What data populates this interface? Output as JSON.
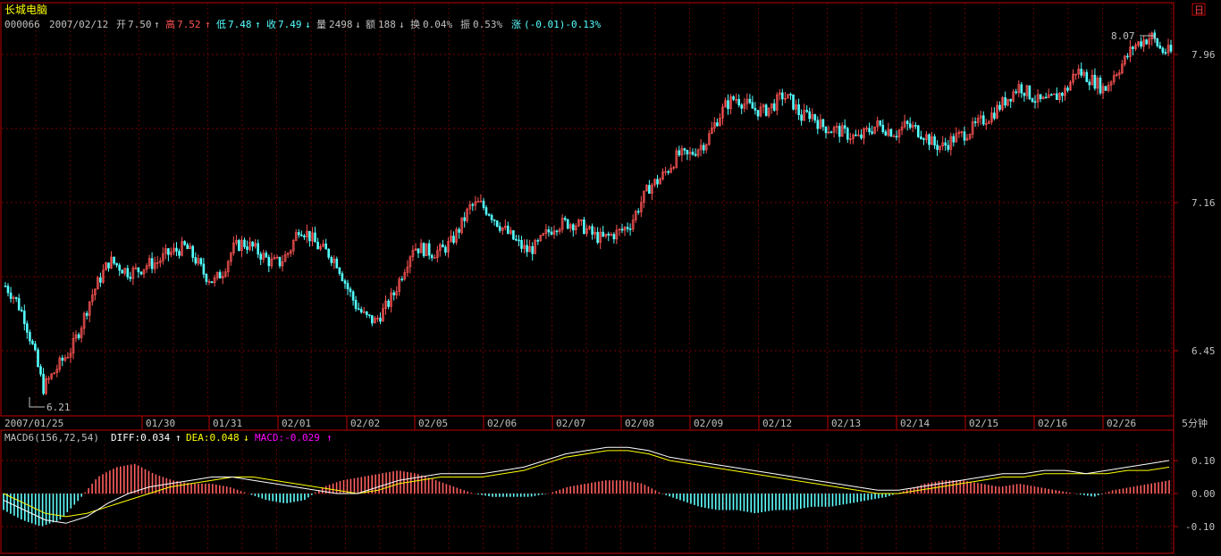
{
  "header": {
    "title": "长城电脑",
    "code": "000066",
    "date": "2007/02/12",
    "open_label": "开",
    "open": "7.50",
    "high_label": "高",
    "high": "7.52",
    "low_label": "低",
    "low": "7.48",
    "close_label": "收",
    "close": "7.49",
    "volume_label": "量",
    "volume": "2498",
    "amount_label": "额",
    "amount": "188",
    "turnover_label": "换",
    "turnover": "0.04%",
    "amplitude_label": "振",
    "amplitude": "0.53%",
    "change_label": "涨",
    "change": "(-0.01)-0.13%",
    "period_badge": "日",
    "period": "5分钟"
  },
  "colors": {
    "background": "#000000",
    "up": "#ff5454",
    "down": "#54ffff",
    "grid": "#a00000",
    "frame": "#c00000",
    "axis_text": "#c0c0c0",
    "title": "#ffff00",
    "diff": "#ffffff",
    "dea": "#ffff00",
    "macd": "#ff00ff",
    "macd_up": "#ff5f5f",
    "macd_down": "#5fffff"
  },
  "chart_data": [
    {
      "type": "candlestick",
      "title": "长城电脑",
      "y_ticks": [
        "7.96",
        "7.16",
        "6.45"
      ],
      "ylim": [
        6.18,
        8.12
      ],
      "x_tick_labels": [
        "2007/01/25",
        "01/30",
        "01/31",
        "02/01",
        "02/02",
        "02/05",
        "02/06",
        "02/07",
        "02/08",
        "02/09",
        "02/12",
        "02/13",
        "02/14",
        "02/15",
        "02/16",
        "02/26"
      ],
      "annotations": [
        {
          "text": "6.21",
          "type": "min"
        },
        {
          "text": "8.07",
          "type": "max"
        }
      ],
      "close_series": [
        6.78,
        6.72,
        6.62,
        6.45,
        6.26,
        6.33,
        6.4,
        6.46,
        6.58,
        6.72,
        6.82,
        6.91,
        6.88,
        6.85,
        6.86,
        6.89,
        6.9,
        6.94,
        6.96,
        6.98,
        6.92,
        6.84,
        6.8,
        6.86,
        6.97,
        7.0,
        6.98,
        6.94,
        6.9,
        6.9,
        6.96,
        7.08,
        7.04,
        6.98,
        6.95,
        6.9,
        6.78,
        6.68,
        6.62,
        6.6,
        6.66,
        6.74,
        6.86,
        6.98,
        6.97,
        6.95,
        6.96,
        7.0,
        7.08,
        7.18,
        7.2,
        7.16,
        7.1,
        7.05,
        7.0,
        6.96,
        6.98,
        7.04,
        7.09,
        7.1,
        7.1,
        7.08,
        7.04,
        7.02,
        7.04,
        7.06,
        7.1,
        7.2,
        7.29,
        7.32,
        7.38,
        7.45,
        7.44,
        7.48,
        7.52,
        7.62,
        7.7,
        7.74,
        7.71,
        7.68,
        7.67,
        7.7,
        7.75,
        7.72,
        7.64,
        7.66,
        7.6,
        7.58,
        7.57,
        7.55,
        7.53,
        7.57,
        7.6,
        7.58,
        7.56,
        7.6,
        7.58,
        7.55,
        7.5,
        7.49,
        7.53,
        7.55,
        7.58,
        7.62,
        7.65,
        7.7,
        7.75,
        7.8,
        7.76,
        7.72,
        7.72,
        7.75,
        7.78,
        7.88,
        7.85,
        7.82,
        7.78,
        7.86,
        7.92,
        8.0,
        8.03,
        8.05,
        7.98,
        7.97
      ]
    },
    {
      "type": "line",
      "title": "MACD6(156,72,54)",
      "series": [
        {
          "name": "DIFF",
          "label": "DIFF:0.034",
          "values": [
            -0.02,
            -0.05,
            -0.08,
            -0.09,
            -0.07,
            -0.03,
            0.0,
            0.02,
            0.03,
            0.04,
            0.05,
            0.05,
            0.04,
            0.03,
            0.02,
            0.01,
            0.0,
            0.0,
            0.02,
            0.04,
            0.05,
            0.06,
            0.06,
            0.06,
            0.07,
            0.08,
            0.1,
            0.12,
            0.13,
            0.14,
            0.14,
            0.13,
            0.11,
            0.1,
            0.09,
            0.08,
            0.07,
            0.06,
            0.05,
            0.04,
            0.03,
            0.02,
            0.01,
            0.01,
            0.02,
            0.03,
            0.04,
            0.05,
            0.06,
            0.06,
            0.07,
            0.07,
            0.06,
            0.07,
            0.08,
            0.09,
            0.1
          ]
        },
        {
          "name": "DEA",
          "label": "DEA:0.048",
          "values": [
            0.0,
            -0.03,
            -0.06,
            -0.07,
            -0.06,
            -0.04,
            -0.02,
            0.0,
            0.02,
            0.03,
            0.04,
            0.05,
            0.05,
            0.04,
            0.03,
            0.02,
            0.01,
            0.0,
            0.01,
            0.03,
            0.04,
            0.05,
            0.05,
            0.05,
            0.06,
            0.07,
            0.09,
            0.11,
            0.12,
            0.13,
            0.13,
            0.12,
            0.1,
            0.09,
            0.08,
            0.07,
            0.06,
            0.05,
            0.04,
            0.03,
            0.02,
            0.01,
            0.0,
            0.0,
            0.01,
            0.02,
            0.03,
            0.04,
            0.05,
            0.05,
            0.06,
            0.06,
            0.06,
            0.06,
            0.07,
            0.07,
            0.08
          ]
        },
        {
          "name": "MACD",
          "label": "MACD:-0.029",
          "values": [
            -0.05,
            -0.08,
            -0.1,
            -0.08,
            -0.02,
            0.05,
            0.08,
            0.09,
            0.06,
            0.04,
            0.03,
            0.03,
            0.02,
            0.0,
            -0.02,
            -0.03,
            -0.02,
            0.02,
            0.04,
            0.05,
            0.06,
            0.07,
            0.06,
            0.04,
            0.02,
            0.0,
            -0.01,
            -0.01,
            -0.01,
            0.0,
            0.02,
            0.03,
            0.04,
            0.04,
            0.03,
            0.0,
            -0.02,
            -0.04,
            -0.05,
            -0.05,
            -0.06,
            -0.05,
            -0.05,
            -0.04,
            -0.04,
            -0.03,
            -0.02,
            -0.01,
            0.01,
            0.03,
            0.04,
            0.04,
            0.03,
            0.02,
            0.03,
            0.02,
            0.01,
            0.0,
            -0.01,
            0.01,
            0.02,
            0.03,
            0.04
          ]
        }
      ],
      "y_ticks": [
        "0.10",
        "0.00",
        "-0.10"
      ],
      "ylim": [
        -0.15,
        0.16
      ]
    }
  ]
}
